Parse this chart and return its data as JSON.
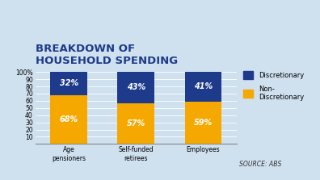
{
  "title_line1": "BREAKDOWN OF",
  "title_line2": "HOUSEHOLD SPENDING",
  "categories": [
    "Age\npensioners",
    "Self-funded\nretirees",
    "Employees"
  ],
  "discretionary": [
    32,
    43,
    41
  ],
  "non_discretionary": [
    68,
    57,
    59
  ],
  "discretionary_color": "#1e3a8a",
  "non_discretionary_color": "#f5a800",
  "discretionary_label": "Discretionary",
  "non_discretionary_label": "Non-\nDiscretionary",
  "source_text": "SOURCE: ABS",
  "yticks": [
    10,
    20,
    30,
    40,
    50,
    60,
    70,
    80,
    90,
    100
  ],
  "ytick_labels": [
    "10",
    "20",
    "30",
    "40",
    "50",
    "60",
    "70",
    "80",
    "90",
    "100%"
  ],
  "ylim": [
    0,
    105
  ],
  "background_color": "#cfe0ee",
  "title_color": "#1e3a8a",
  "bar_width": 0.55,
  "title_fontsize": 9.5,
  "label_fontsize": 7,
  "tick_fontsize": 5.5,
  "legend_fontsize": 6,
  "source_fontsize": 5.5,
  "text_color_light": "#ffffff"
}
